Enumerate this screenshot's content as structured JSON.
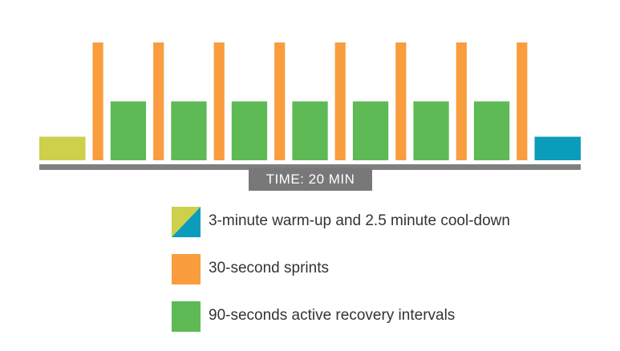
{
  "chart_data": {
    "type": "bar",
    "xlabel": "TIME: 20 MIN",
    "segments": [
      {
        "kind": "warmup",
        "minutes": 3,
        "intensity": 1
      },
      {
        "kind": "sprint",
        "minutes": 0.5,
        "intensity": 5
      },
      {
        "kind": "recovery",
        "minutes": 1.5,
        "intensity": 2.5
      },
      {
        "kind": "sprint",
        "minutes": 0.5,
        "intensity": 5
      },
      {
        "kind": "recovery",
        "minutes": 1.5,
        "intensity": 2.5
      },
      {
        "kind": "sprint",
        "minutes": 0.5,
        "intensity": 5
      },
      {
        "kind": "recovery",
        "minutes": 1.5,
        "intensity": 2.5
      },
      {
        "kind": "sprint",
        "minutes": 0.5,
        "intensity": 5
      },
      {
        "kind": "recovery",
        "minutes": 1.5,
        "intensity": 2.5
      },
      {
        "kind": "sprint",
        "minutes": 0.5,
        "intensity": 5
      },
      {
        "kind": "recovery",
        "minutes": 1.5,
        "intensity": 2.5
      },
      {
        "kind": "sprint",
        "minutes": 0.5,
        "intensity": 5
      },
      {
        "kind": "recovery",
        "minutes": 1.5,
        "intensity": 2.5
      },
      {
        "kind": "sprint",
        "minutes": 0.5,
        "intensity": 5
      },
      {
        "kind": "recovery",
        "minutes": 1.5,
        "intensity": 2.5
      },
      {
        "kind": "sprint",
        "minutes": 0.5,
        "intensity": 5
      },
      {
        "kind": "cooldown",
        "minutes": 2.5,
        "intensity": 1
      }
    ],
    "colors": {
      "warmup": "#cdd04a",
      "sprint": "#f99d3e",
      "recovery": "#5dba55",
      "cooldown": "#0b9cbc",
      "axis": "#808080",
      "label_bg": "#787878"
    },
    "legend": [
      {
        "key": "warmup_cooldown",
        "label": "3-minute warm-up and 2.5 minute cool-down"
      },
      {
        "key": "sprint",
        "label": "30-second sprints"
      },
      {
        "key": "recovery",
        "label": "90-seconds active recovery intervals"
      }
    ],
    "grid": false,
    "legend_position": "bottom"
  }
}
